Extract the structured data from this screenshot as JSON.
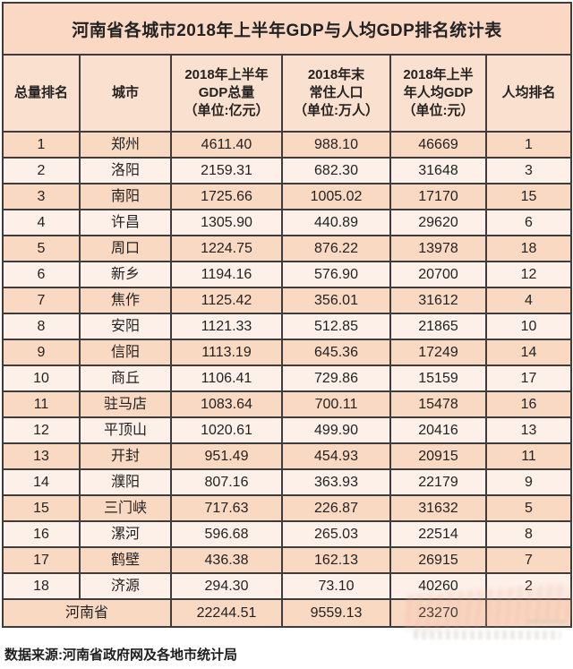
{
  "page": {
    "title": "河南省各城市2018年上半年GDP与人均GDP排名统计表",
    "footer": "数据来源:河南省政府网及各地市统计局"
  },
  "chart_data": {
    "type": "table",
    "title": "河南省各城市2018年上半年GDP与人均GDP排名统计表",
    "source": "数据来源:河南省政府网及各地市统计局",
    "columns": [
      "总量排名",
      "城市",
      "2018年上半年\nGDP总量\n（单位:亿元）",
      "2018年末\n常住人口\n（单位:万人）",
      "2018年上半\n年人均GDP\n（单位:元）",
      "人均排名"
    ],
    "rows": [
      [
        "1",
        "郑州",
        "4611.40",
        "988.10",
        "46669",
        "1"
      ],
      [
        "2",
        "洛阳",
        "2159.31",
        "682.30",
        "31648",
        "3"
      ],
      [
        "3",
        "南阳",
        "1725.66",
        "1005.02",
        "17170",
        "15"
      ],
      [
        "4",
        "许昌",
        "1305.90",
        "440.89",
        "29620",
        "6"
      ],
      [
        "5",
        "周口",
        "1224.75",
        "876.22",
        "13978",
        "18"
      ],
      [
        "6",
        "新乡",
        "1194.16",
        "576.90",
        "20700",
        "12"
      ],
      [
        "7",
        "焦作",
        "1125.42",
        "356.01",
        "31612",
        "4"
      ],
      [
        "8",
        "安阳",
        "1121.33",
        "512.85",
        "21865",
        "10"
      ],
      [
        "9",
        "信阳",
        "1113.19",
        "645.36",
        "17249",
        "14"
      ],
      [
        "10",
        "商丘",
        "1106.41",
        "729.86",
        "15159",
        "17"
      ],
      [
        "11",
        "驻马店",
        "1083.64",
        "700.11",
        "15478",
        "16"
      ],
      [
        "12",
        "平顶山",
        "1020.61",
        "499.90",
        "20416",
        "13"
      ],
      [
        "13",
        "开封",
        "951.49",
        "454.93",
        "20915",
        "11"
      ],
      [
        "14",
        "濮阳",
        "807.16",
        "363.93",
        "22179",
        "9"
      ],
      [
        "15",
        "三门峡",
        "717.63",
        "226.87",
        "31632",
        "5"
      ],
      [
        "16",
        "漯河",
        "596.68",
        "265.03",
        "22514",
        "8"
      ],
      [
        "17",
        "鹤壁",
        "436.38",
        "162.13",
        "26915",
        "7"
      ],
      [
        "18",
        "济源",
        "294.30",
        "73.10",
        "40260",
        "2"
      ]
    ],
    "total_row": {
      "label": "河南省",
      "gdp": "22244.51",
      "population": "9559.13",
      "per_capita": "23270",
      "per_capita_rank": ""
    }
  },
  "colors": {
    "title_text": "#b23b2c",
    "title_bg": "#fad8c3",
    "header_bg": "#fae0cf",
    "row_peach": "#fad9c3",
    "row_light": "#fdf0e9",
    "border": "#3d3d3d",
    "body_text": "#222222"
  }
}
